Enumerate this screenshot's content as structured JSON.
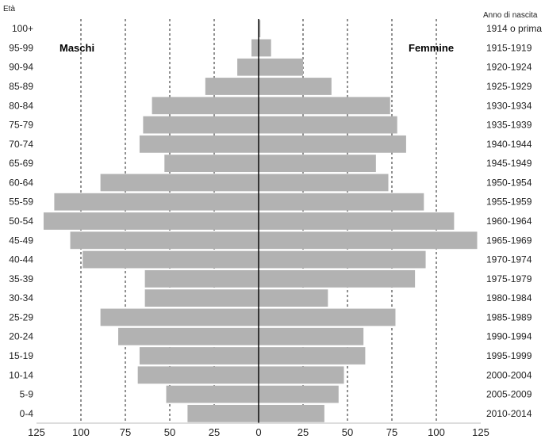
{
  "chart_data": {
    "type": "bar",
    "orientation": "horizontal",
    "layout": "population-pyramid",
    "left_axis_title": "Età",
    "right_axis_title": "Anno di nascita",
    "left_group_label": "Maschi",
    "right_group_label": "Femmine",
    "categories": [
      "0-4",
      "5-9",
      "10-14",
      "15-19",
      "20-24",
      "25-29",
      "30-34",
      "35-39",
      "40-44",
      "45-49",
      "50-54",
      "55-59",
      "60-64",
      "65-69",
      "70-74",
      "75-79",
      "80-84",
      "85-89",
      "90-94",
      "95-99",
      "100+"
    ],
    "birth_years": [
      "2010-2014",
      "2005-2009",
      "2000-2004",
      "1995-1999",
      "1990-1994",
      "1985-1989",
      "1980-1984",
      "1975-1979",
      "1970-1974",
      "1965-1969",
      "1960-1964",
      "1955-1959",
      "1950-1954",
      "1945-1949",
      "1940-1944",
      "1935-1939",
      "1930-1934",
      "1925-1929",
      "1920-1924",
      "1915-1919",
      "1914 o prima"
    ],
    "series": [
      {
        "name": "Maschi",
        "values": [
          40,
          52,
          68,
          67,
          79,
          89,
          64,
          64,
          99,
          106,
          121,
          115,
          89,
          53,
          67,
          65,
          60,
          30,
          12,
          4,
          0
        ]
      },
      {
        "name": "Femmine",
        "values": [
          37,
          45,
          48,
          60,
          59,
          77,
          39,
          88,
          94,
          123,
          110,
          93,
          73,
          66,
          83,
          78,
          74,
          41,
          25,
          7,
          1
        ]
      }
    ],
    "xlim": [
      -125,
      125
    ],
    "x_ticks": [
      -125,
      -100,
      -75,
      -50,
      -25,
      0,
      25,
      50,
      75,
      100,
      125
    ],
    "x_tick_labels": [
      "125",
      "100",
      "75",
      "50",
      "25",
      "0",
      "25",
      "50",
      "75",
      "100",
      "125"
    ],
    "grid": "dashed vertical",
    "bar_color": "#b2b2b2"
  }
}
